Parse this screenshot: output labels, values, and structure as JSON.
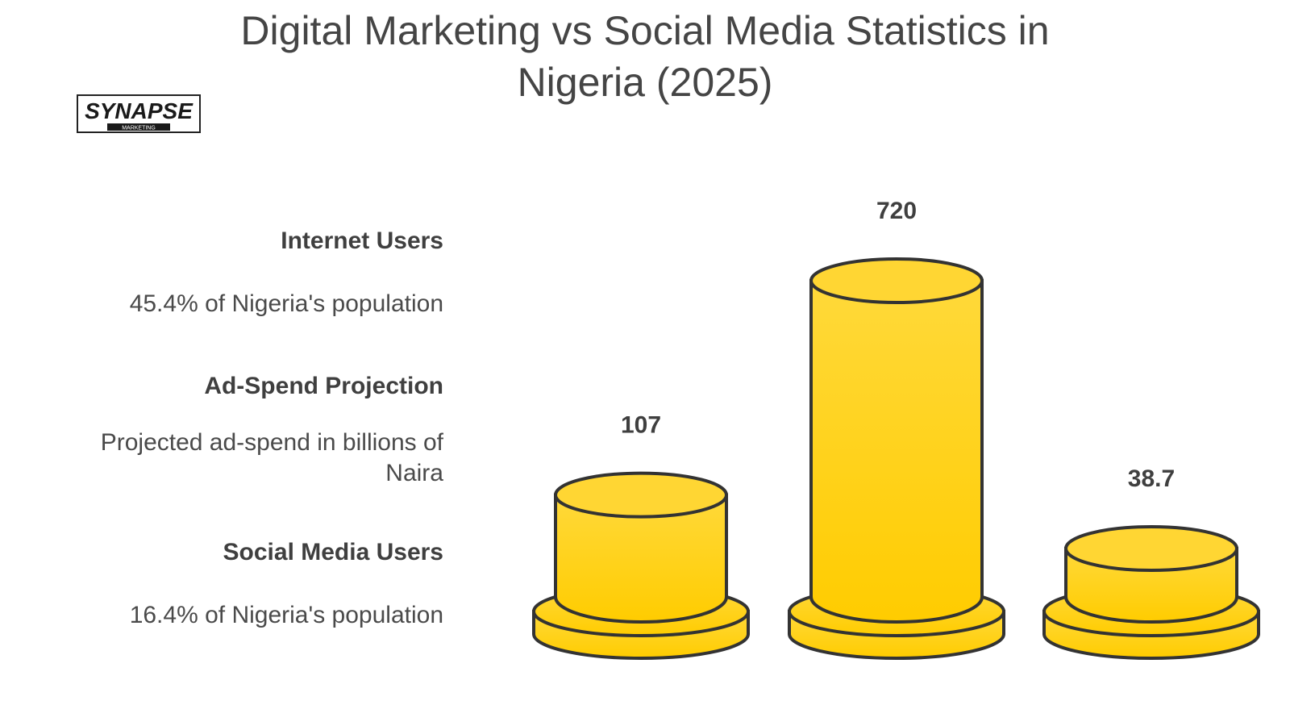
{
  "title": "Digital Marketing vs Social Media Statistics in Nigeria (2025)",
  "title_line1": "Digital Marketing vs Social Media Statistics in",
  "title_line2": "Nigeria (2025)",
  "logo": {
    "text": "SYNAPSE",
    "subtext": "MARKETING"
  },
  "legend": [
    {
      "title": "Internet Users",
      "desc": "45.4% of Nigeria's population"
    },
    {
      "title": "Ad-Spend Projection",
      "desc_line1": "Projected ad-spend in billions of",
      "desc_line2": "Naira"
    },
    {
      "title": "Social Media Users",
      "desc": "16.4% of Nigeria's population"
    }
  ],
  "colors": {
    "fill_top": "#ffd93a",
    "fill_bottom": "#ffcc00",
    "stroke": "#333333",
    "text": "#3f3f3f"
  },
  "chart_data": {
    "type": "bar",
    "categories": [
      "Internet Users",
      "Ad-Spend Projection",
      "Social Media Users"
    ],
    "values": [
      107,
      720,
      38.7
    ],
    "value_labels": [
      "107",
      "720",
      "38.7"
    ],
    "title": "Digital Marketing vs Social Media Statistics in Nigeria (2025)",
    "grid": false
  }
}
